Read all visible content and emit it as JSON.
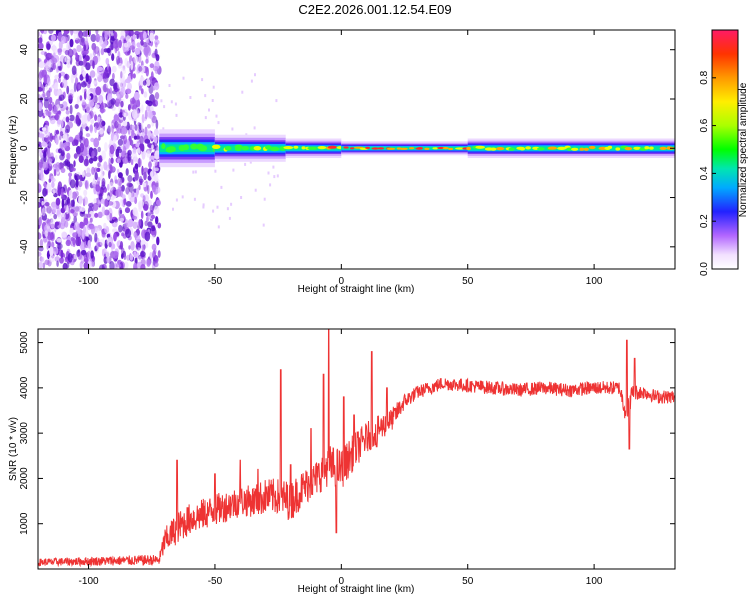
{
  "title": "C2E2.2026.001.12.54.E09",
  "chart_data": [
    {
      "type": "heatmap",
      "xlabel": "Height of straight line (km)",
      "ylabel": "Frequency (Hz)",
      "xlim": [
        -120,
        132
      ],
      "ylim": [
        -49,
        48
      ],
      "xticks": [
        -100,
        -50,
        0,
        50,
        100
      ],
      "yticks": [
        -40,
        -20,
        0,
        20,
        40
      ],
      "noise_region_x": [
        -120,
        -72
      ],
      "signal_segments": [
        {
          "x0": -72,
          "x1": -50,
          "half_width_hz": 3.5,
          "amplitude": 0.45
        },
        {
          "x0": -50,
          "x1": -22,
          "half_width_hz": 2.5,
          "amplitude": 0.55
        },
        {
          "x0": -22,
          "x1": 0,
          "half_width_hz": 1.8,
          "amplitude": 0.75
        },
        {
          "x0": 0,
          "x1": 50,
          "half_width_hz": 1.3,
          "amplitude": 0.85
        },
        {
          "x0": 50,
          "x1": 132,
          "half_width_hz": 1.8,
          "amplitude": 0.7
        }
      ],
      "colorbar": {
        "label": "Normalized spectral amplitude",
        "range": [
          0.0,
          1.0
        ],
        "ticks": [
          0.0,
          0.2,
          0.4,
          0.6,
          0.8
        ],
        "tick_labels": [
          "0.0",
          "0.2",
          "0.4",
          "0.6",
          "0.8"
        ]
      },
      "grid": false
    },
    {
      "type": "line",
      "xlabel": "Height of straight line (km)",
      "ylabel": "SNR (10 * v/v)",
      "xlim": [
        -120,
        132
      ],
      "ylim": [
        0,
        5300
      ],
      "xticks": [
        -100,
        -50,
        0,
        50,
        100
      ],
      "yticks": [
        1000,
        2000,
        3000,
        4000,
        5000
      ],
      "color": "#ee3333",
      "series": [
        {
          "x": [
            -120,
            -72,
            -70,
            -65,
            -60,
            -55,
            -50,
            -45,
            -40,
            -35,
            -30,
            -25,
            -20,
            -15,
            -10,
            -5,
            0,
            5,
            10,
            15,
            20,
            25,
            30,
            35,
            40,
            50,
            60,
            70,
            80,
            90,
            100,
            110,
            113,
            115,
            120,
            125,
            132
          ],
          "y": [
            150,
            200,
            600,
            900,
            1100,
            1200,
            1300,
            1400,
            1500,
            1500,
            1600,
            1600,
            1500,
            1800,
            2000,
            2300,
            2200,
            2600,
            2900,
            3100,
            3300,
            3700,
            3900,
            4000,
            4100,
            4050,
            4000,
            3950,
            4000,
            3950,
            4000,
            4000,
            3400,
            3900,
            3900,
            3800,
            3800
          ],
          "noise_amp": [
            80,
            120,
            300,
            350,
            350,
            350,
            350,
            350,
            350,
            350,
            400,
            400,
            450,
            400,
            400,
            450,
            450,
            400,
            350,
            300,
            250,
            180,
            150,
            150,
            150,
            150,
            150,
            150,
            150,
            150,
            150,
            150,
            300,
            180,
            150,
            150,
            150
          ],
          "spikes": [
            [
              -65,
              2400
            ],
            [
              -50,
              2100
            ],
            [
              -40,
              2400
            ],
            [
              -33,
              2200
            ],
            [
              -24,
              4400
            ],
            [
              -20,
              2300
            ],
            [
              -12,
              3100
            ],
            [
              -7,
              4300
            ],
            [
              -5,
              5300
            ],
            [
              -2,
              800
            ],
            [
              1,
              3800
            ],
            [
              5,
              3400
            ],
            [
              12,
              4800
            ],
            [
              14,
              2700
            ],
            [
              18,
              4000
            ],
            [
              113,
              5050
            ],
            [
              114,
              2650
            ],
            [
              116,
              4650
            ]
          ]
        }
      ]
    }
  ]
}
